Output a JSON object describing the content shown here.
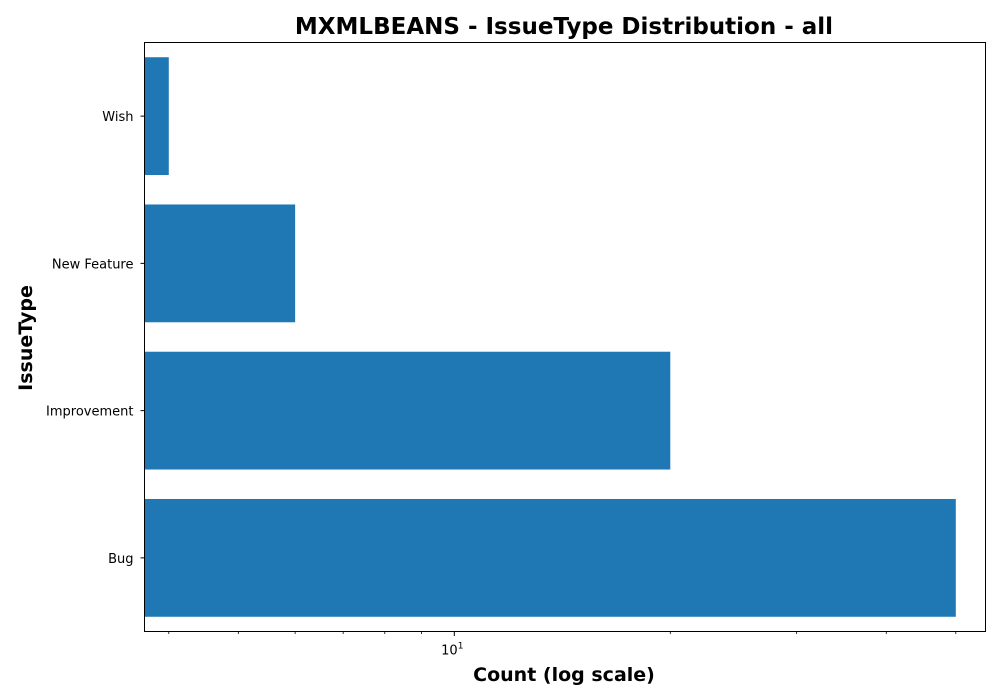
{
  "chart_data": {
    "type": "bar",
    "orientation": "horizontal",
    "title": "MXMLBEANS - IssueType Distribution - all",
    "xlabel": "Count (log scale)",
    "ylabel": "IssueType",
    "x_scale": "log",
    "xlim": [
      3.7,
      55
    ],
    "x_ticks": [
      {
        "base": "10",
        "exp": "1",
        "value": 10
      }
    ],
    "categories": [
      "Bug",
      "Improvement",
      "New Feature",
      "Wish"
    ],
    "values": [
      50,
      20,
      6,
      4
    ],
    "bar_color": "#1f77b4",
    "grid": false,
    "legend": "none"
  }
}
